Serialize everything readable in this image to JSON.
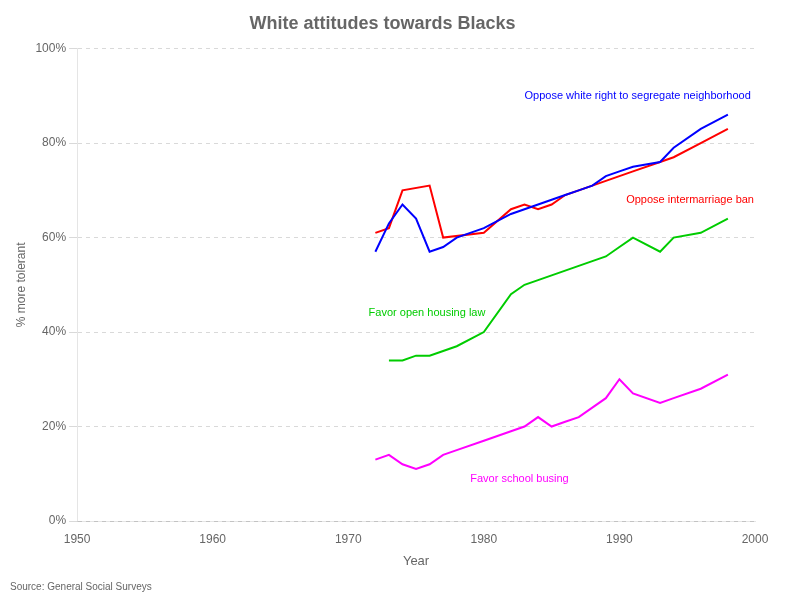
{
  "chart_data": {
    "type": "line",
    "title": "White attitudes towards Blacks",
    "x_label": "Year",
    "y_label": "% more tolerant",
    "source": "Source: General Social Surveys",
    "xlim": [
      1950,
      2000
    ],
    "xticks": [
      1950,
      1960,
      1970,
      1980,
      1990,
      2000
    ],
    "ylim": [
      0,
      100
    ],
    "yticks": [
      {
        "value": 0,
        "label": "0%"
      },
      {
        "value": 20,
        "label": "20%"
      },
      {
        "value": 40,
        "label": "40%"
      },
      {
        "value": 60,
        "label": "60%"
      },
      {
        "value": 80,
        "label": "80%"
      },
      {
        "value": 100,
        "label": "100%"
      }
    ],
    "grid": "y",
    "series": [
      {
        "name": "Oppose white right to segregate neighborhood",
        "color": "#0000FF",
        "x": [
          1972,
          1973,
          1974,
          1975,
          1976,
          1977,
          1978,
          1980,
          1982,
          1983,
          1984,
          1985,
          1986,
          1987,
          1988,
          1989,
          1990,
          1991,
          1993,
          1994,
          1996,
          1998
        ],
        "values": [
          57,
          63,
          67,
          64,
          57,
          58,
          60,
          62,
          65,
          66,
          67,
          68,
          69,
          70,
          71,
          73,
          74,
          75,
          76,
          79,
          83,
          86
        ]
      },
      {
        "name": "Oppose intermarriage ban",
        "color": "#FF0000",
        "x": [
          1972,
          1973,
          1974,
          1976,
          1977,
          1980,
          1982,
          1983,
          1984,
          1985,
          1986,
          1987,
          1988,
          1989,
          1990,
          1991,
          1993,
          1994,
          1996,
          1998
        ],
        "values": [
          61,
          62,
          70,
          71,
          60,
          61,
          66,
          67,
          66,
          67,
          69,
          70,
          71,
          72,
          73,
          74,
          76,
          77,
          80,
          83
        ]
      },
      {
        "name": "Favor open housing law",
        "color": "#00CC00",
        "x": [
          1973,
          1974,
          1975,
          1976,
          1977,
          1978,
          1980,
          1982,
          1983,
          1984,
          1985,
          1986,
          1987,
          1988,
          1989,
          1990,
          1991,
          1993,
          1994,
          1996,
          1998
        ],
        "values": [
          34,
          34,
          35,
          35,
          36,
          37,
          40,
          48,
          50,
          51,
          52,
          53,
          54,
          55,
          56,
          58,
          60,
          57,
          60,
          61,
          64
        ]
      },
      {
        "name": "Favor school busing",
        "color": "#FF00FF",
        "x": [
          1972,
          1973,
          1974,
          1975,
          1976,
          1977,
          1978,
          1980,
          1982,
          1983,
          1984,
          1985,
          1986,
          1987,
          1988,
          1989,
          1990,
          1991,
          1993,
          1994,
          1996,
          1998
        ],
        "values": [
          13,
          14,
          12,
          11,
          12,
          14,
          15,
          17,
          19,
          20,
          22,
          20,
          21,
          22,
          24,
          26,
          30,
          27,
          25,
          26,
          28,
          31
        ]
      }
    ],
    "annotations": [
      {
        "text": "Oppose white right to segregate neighborhood",
        "x": 1983,
        "y": 90,
        "color": "#0000FF"
      },
      {
        "text": "Oppose intermarriage ban",
        "x": 1990.5,
        "y": 68,
        "color": "#FF0000"
      },
      {
        "text": "Favor open housing law",
        "x": 1971.5,
        "y": 44,
        "color": "#00CC00"
      },
      {
        "text": "Favor school busing",
        "x": 1979,
        "y": 9,
        "color": "#FF00FF"
      }
    ],
    "legend": false
  }
}
